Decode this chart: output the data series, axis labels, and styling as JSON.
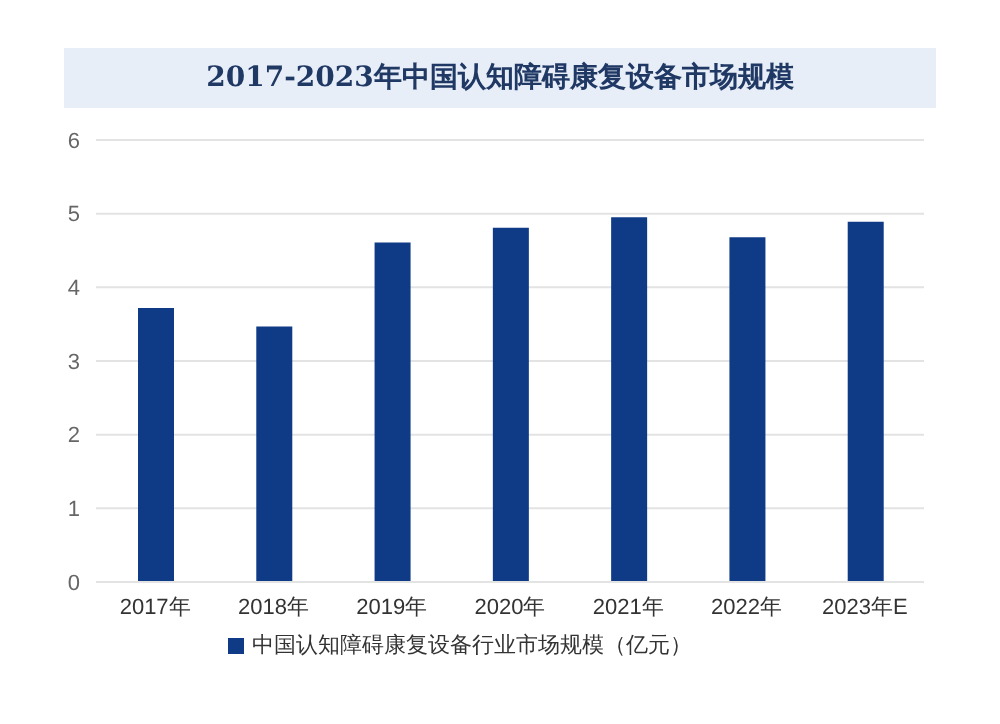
{
  "chart_data": {
    "type": "bar",
    "title": "2017-2023年中国认知障碍康复设备市场规模",
    "categories": [
      "2017年",
      "2018年",
      "2019年",
      "2020年",
      "2021年",
      "2022年",
      "2023年E"
    ],
    "series": [
      {
        "name": "中国认知障碍康复设备行业市场规模（亿元）",
        "color": "#0e3a86",
        "values": [
          3.72,
          3.47,
          4.61,
          4.81,
          4.95,
          4.68,
          4.89
        ]
      }
    ],
    "ylim": [
      0,
      6
    ],
    "yticks": [
      0,
      1,
      2,
      3,
      4,
      5,
      6
    ],
    "grid": "y",
    "legend": "bottom"
  }
}
